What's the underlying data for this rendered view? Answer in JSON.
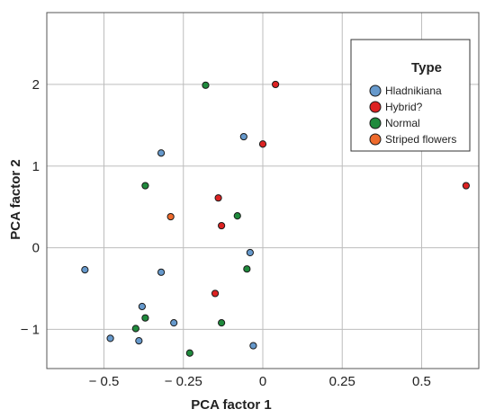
{
  "chart_data": {
    "type": "scatter",
    "xlabel": "PCA factor 1",
    "ylabel": "PCA factor 2",
    "xlim": [
      -0.68,
      0.68
    ],
    "ylim": [
      -1.48,
      2.88
    ],
    "xticks": [
      -0.5,
      -0.25,
      0,
      0.25,
      0.5
    ],
    "xtick_labels": [
      "− 0.5",
      "− 0.25",
      "0",
      "0.25",
      "0.5"
    ],
    "yticks": [
      -1,
      0,
      1,
      2
    ],
    "ytick_labels": [
      "− 1",
      "0",
      "1",
      "2"
    ],
    "grid": true,
    "legend": {
      "title": "Type",
      "placement": "top-right",
      "entries": [
        "Hladnikiana",
        "Hybrid?",
        "Normal",
        "Striped flowers"
      ]
    },
    "series": [
      {
        "name": "Hladnikiana",
        "color": "#6699cc",
        "points": [
          [
            -0.32,
            1.16
          ],
          [
            -0.06,
            1.36
          ],
          [
            -0.56,
            -0.27
          ],
          [
            -0.32,
            -0.3
          ],
          [
            -0.04,
            -0.06
          ],
          [
            -0.38,
            -0.72
          ],
          [
            -0.28,
            -0.92
          ],
          [
            -0.48,
            -1.11
          ],
          [
            -0.39,
            -1.14
          ],
          [
            -0.03,
            -1.2
          ]
        ]
      },
      {
        "name": "Hybrid?",
        "color": "#dd2222",
        "points": [
          [
            0.04,
            2.0
          ],
          [
            0.0,
            1.27
          ],
          [
            -0.14,
            0.61
          ],
          [
            -0.13,
            0.27
          ],
          [
            -0.15,
            -0.56
          ],
          [
            0.64,
            0.76
          ]
        ]
      },
      {
        "name": "Normal",
        "color": "#1f8a3c",
        "points": [
          [
            -0.18,
            1.99
          ],
          [
            -0.37,
            0.76
          ],
          [
            -0.08,
            0.39
          ],
          [
            -0.05,
            -0.26
          ],
          [
            -0.37,
            -0.86
          ],
          [
            -0.13,
            -0.92
          ],
          [
            -0.4,
            -0.99
          ],
          [
            -0.23,
            -1.29
          ]
        ]
      },
      {
        "name": "Striped flowers",
        "color": "#ee6a2c",
        "points": [
          [
            -0.29,
            0.38
          ]
        ]
      }
    ]
  }
}
